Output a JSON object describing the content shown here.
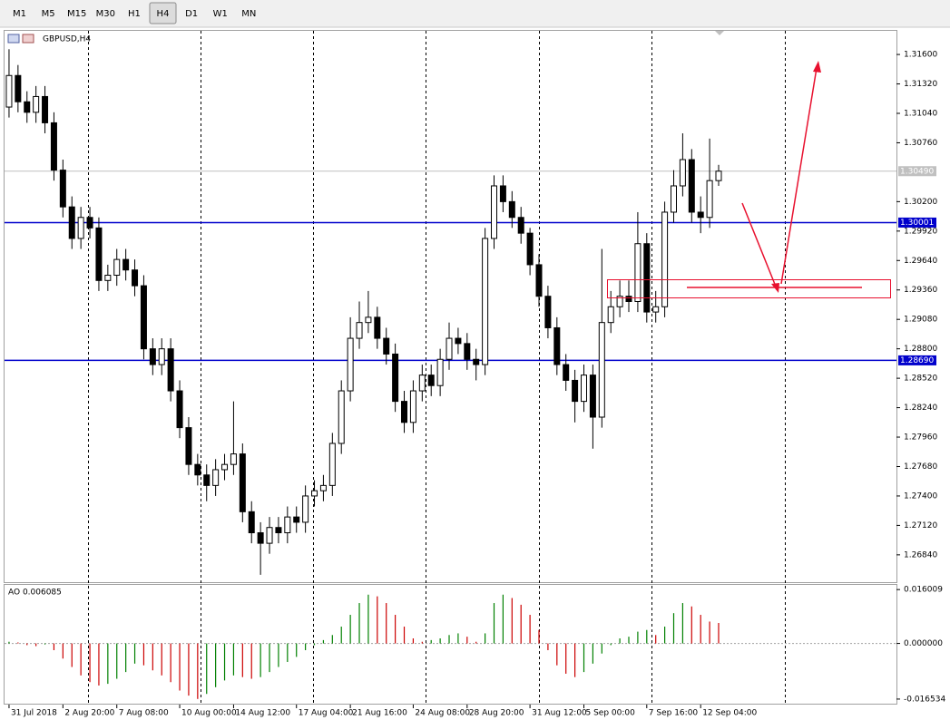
{
  "toolbar": {
    "buttons": [
      "M1",
      "M5",
      "M15",
      "M30",
      "H1",
      "H4",
      "D1",
      "W1",
      "MN"
    ],
    "active_index": 5
  },
  "chart_data": {
    "type": "candlestick",
    "title": "GBPUSD,H4",
    "up_color": "#ffffff",
    "down_color": "#000000",
    "xlim": [
      -0.5,
      98.8
    ],
    "xticks": [
      {
        "value": 0,
        "label": "31 Jul 2018"
      },
      {
        "value": 6,
        "label": "2 Aug 20:00"
      },
      {
        "value": 12,
        "label": "7 Aug 08:00"
      },
      {
        "value": 19,
        "label": "10 Aug 00:00"
      },
      {
        "value": 25,
        "label": "14 Aug 12:00"
      },
      {
        "value": 32,
        "label": "17 Aug 04:00"
      },
      {
        "value": 38,
        "label": "21 Aug 16:00"
      },
      {
        "value": 45,
        "label": "24 Aug 08:00"
      },
      {
        "value": 51,
        "label": "28 Aug 20:00"
      },
      {
        "value": 58,
        "label": "31 Aug 12:00"
      },
      {
        "value": 64,
        "label": "5 Sep 00:00"
      },
      {
        "value": 71,
        "label": "7 Sep 16:00"
      },
      {
        "value": 77,
        "label": "12 Sep 04:00"
      }
    ],
    "ylim": [
      1.2658,
      1.31825
    ],
    "yticks": [
      {
        "value": 1.316,
        "label": "1.31600"
      },
      {
        "value": 1.3132,
        "label": "1.31320"
      },
      {
        "value": 1.3104,
        "label": "1.31040"
      },
      {
        "value": 1.3076,
        "label": "1.30760"
      },
      {
        "value": 1.302,
        "label": "1.30200"
      },
      {
        "value": 1.2992,
        "label": "1.29920"
      },
      {
        "value": 1.2964,
        "label": "1.29640"
      },
      {
        "value": 1.2936,
        "label": "1.29360"
      },
      {
        "value": 1.2908,
        "label": "1.29080"
      },
      {
        "value": 1.288,
        "label": "1.28800"
      },
      {
        "value": 1.2852,
        "label": "1.28520"
      },
      {
        "value": 1.2824,
        "label": "1.28240"
      },
      {
        "value": 1.2796,
        "label": "1.27960"
      },
      {
        "value": 1.2768,
        "label": "1.27680"
      },
      {
        "value": 1.274,
        "label": "1.27400"
      },
      {
        "value": 1.2712,
        "label": "1.27120"
      },
      {
        "value": 1.2684,
        "label": "1.26840"
      }
    ],
    "hlines": [
      {
        "value": 1.30001,
        "color": "#0000cc"
      },
      {
        "value": 1.2869,
        "label": "1.28690",
        "color": "#0000cc"
      }
    ],
    "current_price": {
      "value": 1.3049,
      "label": "1.30490",
      "color": "#c0c0c0"
    },
    "open": [
      1.311,
      1.314,
      1.3115,
      1.3105,
      1.312,
      1.3095,
      1.305,
      1.3015,
      1.2985,
      1.3005,
      1.2995,
      1.2945,
      1.295,
      1.2965,
      1.2955,
      1.294,
      1.288,
      1.2865,
      1.288,
      1.284,
      1.2805,
      1.277,
      1.276,
      1.275,
      1.2765,
      1.277,
      1.278,
      1.2725,
      1.2705,
      1.2695,
      1.271,
      1.2705,
      1.272,
      1.2715,
      1.274,
      1.2745,
      1.275,
      1.279,
      1.284,
      1.289,
      1.2905,
      1.291,
      1.289,
      1.2875,
      1.283,
      1.281,
      1.284,
      1.2855,
      1.2845,
      1.287,
      1.289,
      1.2885,
      1.287,
      1.2865,
      1.2985,
      1.3035,
      1.302,
      1.3005,
      1.299,
      1.296,
      1.293,
      1.29,
      1.2865,
      1.285,
      1.283,
      1.2855,
      1.2815,
      1.2905,
      1.292,
      1.293,
      1.2925,
      1.298,
      1.2915,
      1.292,
      1.301,
      1.3035,
      1.306,
      1.301,
      1.3005,
      1.304
    ],
    "high": [
      1.3165,
      1.315,
      1.3125,
      1.313,
      1.313,
      1.3105,
      1.306,
      1.3025,
      1.3015,
      1.3015,
      1.3005,
      1.296,
      1.2975,
      1.2975,
      1.2965,
      1.295,
      1.289,
      1.289,
      1.289,
      1.285,
      1.2815,
      1.278,
      1.277,
      1.2775,
      1.278,
      1.283,
      1.279,
      1.2735,
      1.2715,
      1.272,
      1.272,
      1.273,
      1.273,
      1.275,
      1.2755,
      1.276,
      1.28,
      1.285,
      1.291,
      1.2925,
      1.2935,
      1.292,
      1.29,
      1.2885,
      1.284,
      1.285,
      1.2865,
      1.2865,
      1.288,
      1.2905,
      1.29,
      1.2895,
      1.288,
      1.2995,
      1.3045,
      1.3045,
      1.303,
      1.3015,
      1.2995,
      1.297,
      1.294,
      1.291,
      1.2875,
      1.286,
      1.2865,
      1.2865,
      1.2975,
      1.2935,
      1.2945,
      1.2945,
      1.301,
      1.299,
      1.2935,
      1.302,
      1.305,
      1.3085,
      1.307,
      1.3025,
      1.308,
      1.3055
    ],
    "low": [
      1.31,
      1.3105,
      1.3095,
      1.3095,
      1.3085,
      1.304,
      1.3005,
      1.2975,
      1.2975,
      1.2985,
      1.2935,
      1.2935,
      1.294,
      1.2945,
      1.293,
      1.287,
      1.2855,
      1.2855,
      1.283,
      1.2795,
      1.276,
      1.275,
      1.2735,
      1.274,
      1.2755,
      1.276,
      1.2715,
      1.2695,
      1.2665,
      1.2685,
      1.2695,
      1.2695,
      1.2705,
      1.2705,
      1.273,
      1.2735,
      1.274,
      1.278,
      1.283,
      1.288,
      1.2895,
      1.288,
      1.2865,
      1.282,
      1.28,
      1.28,
      1.283,
      1.2835,
      1.2835,
      1.286,
      1.2875,
      1.286,
      1.285,
      1.2855,
      1.2975,
      1.301,
      1.2995,
      1.298,
      1.295,
      1.292,
      1.289,
      1.2855,
      1.284,
      1.281,
      1.282,
      1.2785,
      1.2805,
      1.2895,
      1.291,
      1.2915,
      1.2915,
      1.2905,
      1.2905,
      1.291,
      1.3,
      1.3025,
      1.3,
      1.299,
      1.2995,
      1.3035
    ],
    "close": [
      1.314,
      1.3115,
      1.3105,
      1.312,
      1.3095,
      1.305,
      1.3015,
      1.2985,
      1.3005,
      1.2995,
      1.2945,
      1.295,
      1.2965,
      1.2955,
      1.294,
      1.288,
      1.2865,
      1.288,
      1.284,
      1.2805,
      1.277,
      1.276,
      1.275,
      1.2765,
      1.277,
      1.278,
      1.2725,
      1.2705,
      1.2695,
      1.271,
      1.2705,
      1.272,
      1.2715,
      1.274,
      1.2745,
      1.275,
      1.279,
      1.284,
      1.289,
      1.2905,
      1.291,
      1.289,
      1.2875,
      1.283,
      1.281,
      1.284,
      1.2855,
      1.2845,
      1.287,
      1.289,
      1.2885,
      1.287,
      1.2865,
      1.2985,
      1.3035,
      1.302,
      1.3005,
      1.299,
      1.296,
      1.293,
      1.29,
      1.2865,
      1.285,
      1.283,
      1.2855,
      1.2815,
      1.2905,
      1.292,
      1.293,
      1.2925,
      1.298,
      1.2915,
      1.292,
      1.301,
      1.3035,
      1.306,
      1.301,
      1.3005,
      1.304,
      1.3049
    ],
    "indicator": {
      "type": "histogram",
      "label": "AO 0.006085",
      "up_color": "#008000",
      "down_color": "#cc0000",
      "ylim": [
        -0.0179,
        0.0174
      ],
      "yticks": [
        0.016009,
        {
          "value": 0,
          "label": "0.000000"
        },
        -0.016534
      ],
      "values": [
        0.0005,
        0.0003,
        -0.0005,
        -0.0008,
        -0.0003,
        -0.002,
        -0.0045,
        -0.007,
        -0.0095,
        -0.0115,
        -0.0125,
        -0.012,
        -0.0105,
        -0.0085,
        -0.006,
        -0.0065,
        -0.008,
        -0.0095,
        -0.0115,
        -0.014,
        -0.0155,
        -0.0165,
        -0.015,
        -0.013,
        -0.011,
        -0.0095,
        -0.01,
        -0.0105,
        -0.01,
        -0.0085,
        -0.007,
        -0.0055,
        -0.004,
        -0.002,
        -0.0005,
        0.001,
        0.0025,
        0.005,
        0.0085,
        0.012,
        0.0145,
        0.014,
        0.012,
        0.0085,
        0.005,
        0.0015,
        0.0005,
        0.001,
        0.0015,
        0.0025,
        0.003,
        0.002,
        0.0005,
        0.003,
        0.012,
        0.0145,
        0.0135,
        0.0115,
        0.0085,
        0.004,
        -0.002,
        -0.0065,
        -0.009,
        -0.01,
        -0.0085,
        -0.006,
        -0.003,
        -0.0005,
        0.0015,
        0.002,
        0.0035,
        0.004,
        0.0025,
        0.005,
        0.009,
        0.012,
        0.011,
        0.0085,
        0.0065,
        0.006085
      ]
    }
  }
}
